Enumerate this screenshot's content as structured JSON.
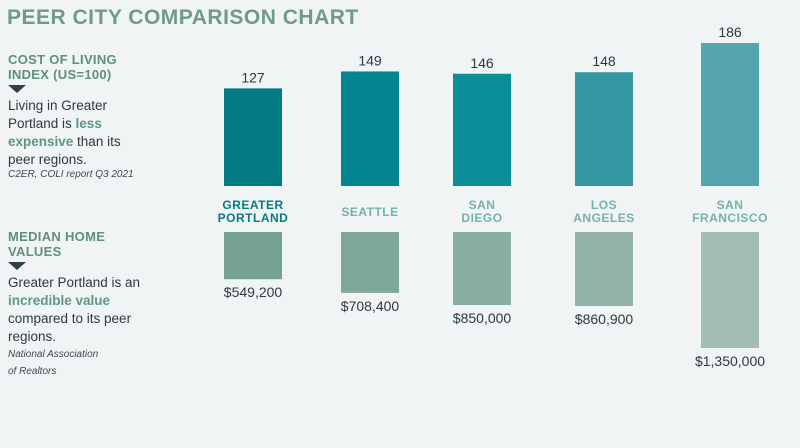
{
  "title": "PEER CITY COMPARISON CHART",
  "side": {
    "col_head": "COST OF LIVING INDEX (US=100)",
    "col_text_before": "Living in Greater Portland is ",
    "col_text_hl": "less expensive",
    "col_text_after": " than its peer regions.",
    "col_source": "C2ER, COLI report Q3 2021",
    "home_head": "MEDIAN HOME VALUES",
    "home_text_before": "Greater Portland is an ",
    "home_text_hl": "incredible value",
    "home_text_after": " compared to its peer regions.",
    "home_source_line1": "National Association",
    "home_source_line2": "of Realtors"
  },
  "chart_data": [
    {
      "type": "bar",
      "categories": [
        "GREATER PORTLAND",
        "SEATTLE",
        "SAN DIEGO",
        "LOS ANGELES",
        "SAN FRANCISCO"
      ],
      "values": [
        127,
        149,
        146,
        148,
        186
      ],
      "value_labels": [
        "127",
        "149",
        "146",
        "148",
        "186"
      ],
      "colors": [
        "#017a83",
        "#03868f",
        "#0a8f99",
        "#3398a2",
        "#55a5af"
      ]
    },
    {
      "type": "bar",
      "categories": [
        "GREATER PORTLAND",
        "SEATTLE",
        "SAN DIEGO",
        "LOS ANGELES",
        "SAN FRANCISCO"
      ],
      "values": [
        549200,
        708400,
        850000,
        860900,
        1350000
      ],
      "value_labels": [
        "$549,200",
        "$708,400",
        "$850,000",
        "$860,900",
        "$1,350,000"
      ],
      "colors": [
        "#77a394",
        "#7fa89b",
        "#89aea2",
        "#94b4aa",
        "#a2bdb6"
      ],
      "axis_break": true
    }
  ],
  "category_label_colors": [
    "#037b84",
    "#76b3a6",
    "#76b3a6",
    "#76b3a6",
    "#76b3a6"
  ]
}
